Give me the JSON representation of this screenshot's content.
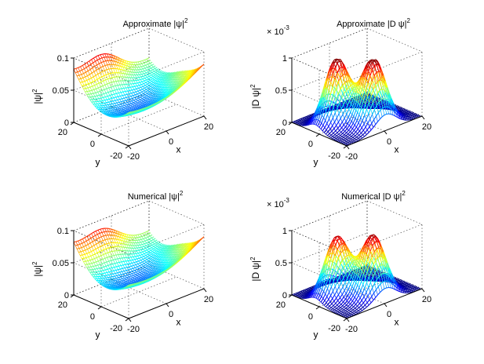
{
  "chart_data": [
    {
      "type": "surface",
      "id": "p1",
      "title": "Approximate |ψ|",
      "title_sup": "2",
      "xlabel": "x",
      "ylabel": "y",
      "zlabel": "|ψ|",
      "zlabel_sup": "2",
      "xticks": [
        "-20",
        "0",
        "20"
      ],
      "yticks": [
        "-20",
        "0",
        "20"
      ],
      "zticks": [
        "0",
        "0.05",
        "0.1"
      ],
      "xlim": [
        -20,
        20
      ],
      "ylim": [
        -20,
        20
      ],
      "zlim": [
        0,
        0.1
      ],
      "exponent_prefix": "",
      "exponent": "",
      "grid": true,
      "colormap": "jet",
      "surface": {
        "kind": "saddle",
        "description_values": {
          "z_center": 0.022,
          "z_corner_x_plus": 0.048,
          "z_corner_x_minus": 0.045,
          "z_corner_y_plus": 0.062,
          "z_corner_y_minus": 0.05,
          "z_peak_back": 0.085
        }
      }
    },
    {
      "type": "surface",
      "id": "p2",
      "title": "Approximate |D ψ|",
      "title_sup": "2",
      "xlabel": "x",
      "ylabel": "y",
      "zlabel": "|D ψ|",
      "zlabel_sup": "2",
      "xticks": [
        "-20",
        "0",
        "20"
      ],
      "yticks": [
        "-20",
        "0",
        "20"
      ],
      "zticks": [
        "0",
        "0.5",
        "1"
      ],
      "xlim": [
        -20,
        20
      ],
      "ylim": [
        -20,
        20
      ],
      "zlim": [
        0,
        1
      ],
      "exponent_prefix": "× 10",
      "exponent": "-3",
      "grid": true,
      "colormap": "jet",
      "surface": {
        "kind": "twin-peaks",
        "description_values": {
          "peak_1_height": 0.93,
          "peak_2_height": 0.95,
          "valley_height": 0.35
        }
      }
    },
    {
      "type": "surface",
      "id": "p3",
      "title": "Numerical |ψ|",
      "title_sup": "2",
      "xlabel": "x",
      "ylabel": "y",
      "zlabel": "|ψ|",
      "zlabel_sup": "2",
      "xticks": [
        "-20",
        "0",
        "20"
      ],
      "yticks": [
        "-20",
        "0",
        "20"
      ],
      "zticks": [
        "0",
        "0.05",
        "0.1"
      ],
      "xlim": [
        -20,
        20
      ],
      "ylim": [
        -20,
        20
      ],
      "zlim": [
        0,
        0.1
      ],
      "exponent_prefix": "",
      "exponent": "",
      "grid": true,
      "colormap": "jet",
      "surface": {
        "kind": "saddle",
        "description_values": {
          "z_center": 0.022,
          "z_corner_x_plus": 0.05,
          "z_corner_x_minus": 0.045,
          "z_corner_y_plus": 0.06,
          "z_corner_y_minus": 0.052,
          "z_peak_back": 0.082
        }
      }
    },
    {
      "type": "surface",
      "id": "p4",
      "title": "Numerical |D ψ|",
      "title_sup": "2",
      "xlabel": "x",
      "ylabel": "y",
      "zlabel": "|D ψ|",
      "zlabel_sup": "2",
      "xticks": [
        "-20",
        "0",
        "20"
      ],
      "yticks": [
        "-20",
        "0",
        "20"
      ],
      "zticks": [
        "0",
        "0.5",
        "1"
      ],
      "xlim": [
        -20,
        20
      ],
      "ylim": [
        -20,
        20
      ],
      "zlim": [
        0,
        1
      ],
      "exponent_prefix": "× 10",
      "exponent": "-3",
      "grid": true,
      "colormap": "jet",
      "surface": {
        "kind": "twin-peaks",
        "description_values": {
          "peak_1_height": 0.82,
          "peak_2_height": 0.86,
          "valley_height": 0.42
        }
      }
    }
  ]
}
